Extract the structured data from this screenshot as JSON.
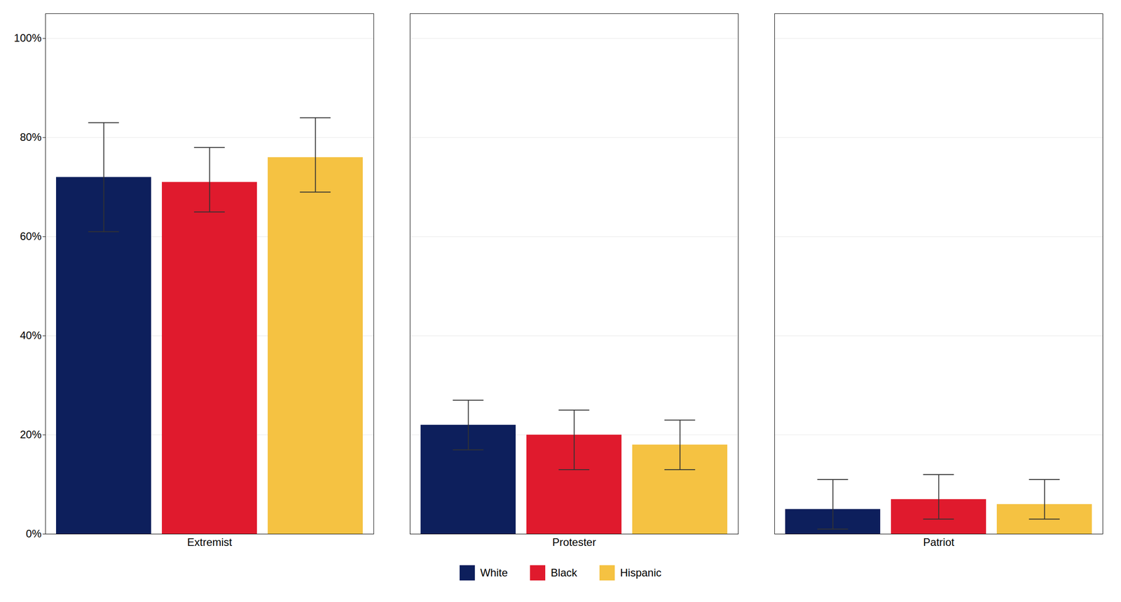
{
  "chart_data": {
    "type": "bar",
    "categories": [
      "Extremist",
      "Protester",
      "Patriot"
    ],
    "series": [
      {
        "name": "White",
        "color": "#0d1f5c",
        "values": [
          72,
          22,
          5
        ],
        "errors_upper": [
          11,
          5,
          6
        ],
        "errors_lower": [
          11,
          5,
          4
        ]
      },
      {
        "name": "Black",
        "color": "#e01a2d",
        "values": [
          71,
          20,
          7
        ],
        "errors_upper": [
          7,
          5,
          5
        ],
        "errors_lower": [
          6,
          7,
          4
        ]
      },
      {
        "name": "Hispanic",
        "color": "#f5c242",
        "values": [
          76,
          18,
          6
        ],
        "errors_upper": [
          8,
          5,
          5
        ],
        "errors_lower": [
          7,
          5,
          3
        ]
      }
    ],
    "ylim": [
      0,
      105
    ],
    "yticks": [
      {
        "value": 0,
        "label": "0%"
      },
      {
        "value": 20,
        "label": "20%"
      },
      {
        "value": 40,
        "label": "40%"
      },
      {
        "value": 60,
        "label": "60%"
      },
      {
        "value": 80,
        "label": "80%"
      },
      {
        "value": 100,
        "label": "100%"
      }
    ],
    "grid": true,
    "legend": "bottom"
  }
}
